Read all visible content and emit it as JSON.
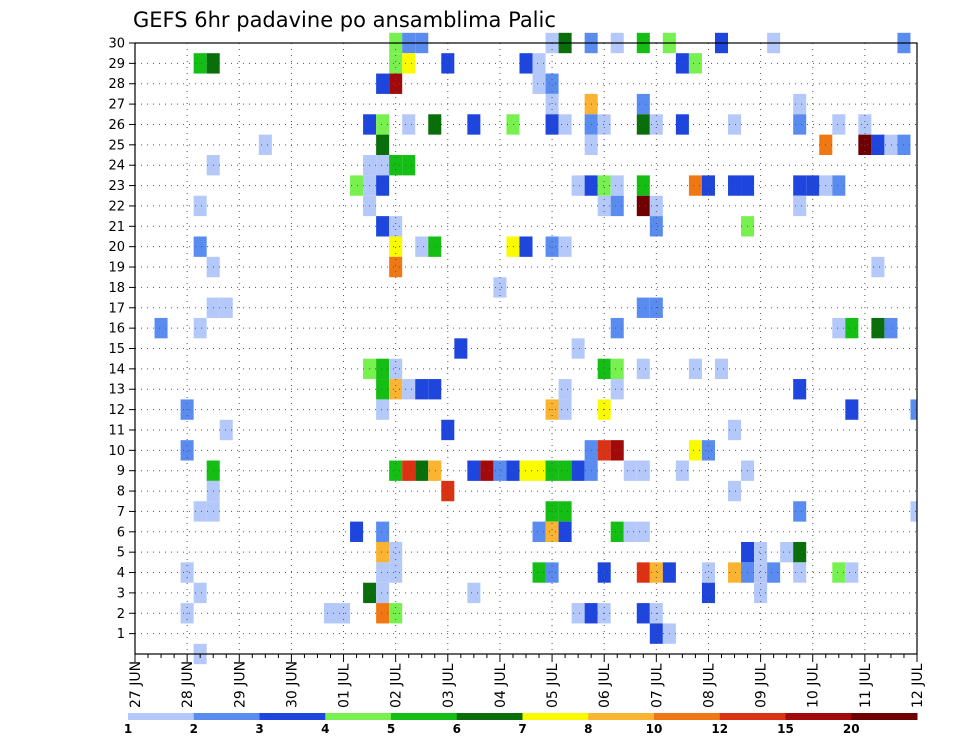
{
  "chart_data": {
    "type": "heatmap",
    "title": "GEFS 6hr padavine po ansamblima Palic",
    "x_tick_labels": [
      "27 JUN",
      "28 JUN",
      "29 JUN",
      "30 JUN",
      "01 JUL",
      "02 JUL",
      "03 JUL",
      "04 JUL",
      "05 JUL",
      "06 JUL",
      "07 JUL",
      "08 JUL",
      "09 JUL",
      "10 JUL",
      "11 JUL",
      "12 JUL"
    ],
    "x_range_days": [
      0,
      15
    ],
    "x_step_days": 0.25,
    "y_tick_labels": [
      "1",
      "2",
      "3",
      "4",
      "5",
      "6",
      "7",
      "8",
      "9",
      "10",
      "11",
      "12",
      "13",
      "14",
      "15",
      "16",
      "17",
      "18",
      "19",
      "20",
      "21",
      "22",
      "23",
      "24",
      "25",
      "26",
      "27",
      "28",
      "29",
      "30"
    ],
    "y_range": [
      0,
      30
    ],
    "grid": "dotted",
    "colorbar": {
      "labels": [
        "1",
        "2",
        "3",
        "4",
        "5",
        "6",
        "7",
        "8",
        "10",
        "12",
        "15",
        "20"
      ],
      "colors": [
        "#b4c8fa",
        "#5a8cf0",
        "#1e46dc",
        "#78f050",
        "#14be14",
        "#0a6e0a",
        "#fafa00",
        "#fab432",
        "#f07814",
        "#dc3214",
        "#a00a0a",
        "#6e0000"
      ]
    },
    "cells": [
      [
        5.0,
        30,
        4
      ],
      [
        5.25,
        30,
        2
      ],
      [
        5.5,
        30,
        2
      ],
      [
        8.0,
        30,
        1
      ],
      [
        8.25,
        30,
        6
      ],
      [
        8.75,
        30,
        2
      ],
      [
        9.25,
        30,
        1
      ],
      [
        9.75,
        30,
        5
      ],
      [
        10.25,
        30,
        4
      ],
      [
        11.25,
        30,
        3
      ],
      [
        12.25,
        30,
        1
      ],
      [
        14.75,
        30,
        2
      ],
      [
        1.25,
        29,
        5
      ],
      [
        1.5,
        29,
        6
      ],
      [
        5.0,
        29,
        4
      ],
      [
        5.25,
        29,
        7
      ],
      [
        6.0,
        29,
        3
      ],
      [
        7.5,
        29,
        3
      ],
      [
        7.75,
        29,
        1
      ],
      [
        10.5,
        29,
        3
      ],
      [
        10.75,
        29,
        4
      ],
      [
        4.75,
        28,
        3
      ],
      [
        5.0,
        28,
        11
      ],
      [
        7.75,
        28,
        1
      ],
      [
        8.0,
        28,
        2
      ],
      [
        8.0,
        27,
        1
      ],
      [
        8.75,
        27,
        8
      ],
      [
        9.75,
        27,
        2
      ],
      [
        12.75,
        27,
        1
      ],
      [
        4.5,
        26,
        3
      ],
      [
        4.75,
        26,
        4
      ],
      [
        5.25,
        26,
        1
      ],
      [
        5.75,
        26,
        6
      ],
      [
        6.5,
        26,
        3
      ],
      [
        7.25,
        26,
        4
      ],
      [
        8.0,
        26,
        3
      ],
      [
        8.25,
        26,
        1
      ],
      [
        8.75,
        26,
        2
      ],
      [
        9.0,
        26,
        1
      ],
      [
        9.75,
        26,
        6
      ],
      [
        10.0,
        26,
        1
      ],
      [
        10.5,
        26,
        3
      ],
      [
        11.5,
        26,
        1
      ],
      [
        12.75,
        26,
        2
      ],
      [
        13.5,
        26,
        1
      ],
      [
        14.0,
        26,
        1
      ],
      [
        2.5,
        25,
        1
      ],
      [
        4.75,
        25,
        6
      ],
      [
        8.75,
        25,
        1
      ],
      [
        13.25,
        25,
        9
      ],
      [
        14.0,
        25,
        12
      ],
      [
        14.25,
        25,
        3
      ],
      [
        14.5,
        25,
        1
      ],
      [
        14.75,
        25,
        2
      ],
      [
        1.5,
        24,
        1
      ],
      [
        4.5,
        24,
        1
      ],
      [
        4.75,
        24,
        1
      ],
      [
        5.0,
        24,
        5
      ],
      [
        5.25,
        24,
        5
      ],
      [
        4.25,
        23,
        4
      ],
      [
        4.5,
        23,
        1
      ],
      [
        4.75,
        23,
        3
      ],
      [
        8.5,
        23,
        1
      ],
      [
        8.75,
        23,
        3
      ],
      [
        9.0,
        23,
        4
      ],
      [
        9.25,
        23,
        1
      ],
      [
        9.75,
        23,
        5
      ],
      [
        10.75,
        23,
        9
      ],
      [
        11.0,
        23,
        3
      ],
      [
        11.5,
        23,
        3
      ],
      [
        11.75,
        23,
        3
      ],
      [
        12.75,
        23,
        3
      ],
      [
        13.0,
        23,
        3
      ],
      [
        13.25,
        23,
        1
      ],
      [
        13.5,
        23,
        2
      ],
      [
        1.25,
        22,
        1
      ],
      [
        4.5,
        22,
        1
      ],
      [
        9.0,
        22,
        1
      ],
      [
        9.25,
        22,
        2
      ],
      [
        9.75,
        22,
        12
      ],
      [
        10.0,
        22,
        1
      ],
      [
        12.75,
        22,
        1
      ],
      [
        4.75,
        21,
        3
      ],
      [
        5.0,
        21,
        1
      ],
      [
        10.0,
        21,
        2
      ],
      [
        11.75,
        21,
        4
      ],
      [
        1.25,
        20,
        2
      ],
      [
        5.0,
        20,
        7
      ],
      [
        5.5,
        20,
        1
      ],
      [
        5.75,
        20,
        5
      ],
      [
        7.25,
        20,
        7
      ],
      [
        7.5,
        20,
        3
      ],
      [
        8.0,
        20,
        2
      ],
      [
        8.25,
        20,
        1
      ],
      [
        5.0,
        19,
        9
      ],
      [
        1.5,
        19,
        1
      ],
      [
        14.25,
        19,
        1
      ],
      [
        7.0,
        18,
        1
      ],
      [
        1.5,
        17,
        1
      ],
      [
        1.75,
        17,
        1
      ],
      [
        9.75,
        17,
        2
      ],
      [
        10.0,
        17,
        2
      ],
      [
        0.5,
        16,
        2
      ],
      [
        1.25,
        16,
        1
      ],
      [
        9.25,
        16,
        2
      ],
      [
        13.5,
        16,
        1
      ],
      [
        13.75,
        16,
        5
      ],
      [
        14.25,
        16,
        6
      ],
      [
        14.5,
        16,
        2
      ],
      [
        6.25,
        15,
        3
      ],
      [
        8.5,
        15,
        1
      ],
      [
        4.5,
        14,
        4
      ],
      [
        4.75,
        14,
        5
      ],
      [
        5.0,
        14,
        1
      ],
      [
        9.0,
        14,
        5
      ],
      [
        9.25,
        14,
        4
      ],
      [
        9.75,
        14,
        1
      ],
      [
        10.75,
        14,
        1
      ],
      [
        11.25,
        14,
        1
      ],
      [
        4.75,
        13,
        5
      ],
      [
        5.0,
        13,
        8
      ],
      [
        5.25,
        13,
        1
      ],
      [
        5.5,
        13,
        3
      ],
      [
        5.75,
        13,
        3
      ],
      [
        8.25,
        13,
        1
      ],
      [
        9.25,
        13,
        1
      ],
      [
        12.75,
        13,
        3
      ],
      [
        1.0,
        12,
        2
      ],
      [
        4.75,
        12,
        1
      ],
      [
        8.0,
        12,
        8
      ],
      [
        8.25,
        12,
        1
      ],
      [
        9.0,
        12,
        7
      ],
      [
        13.75,
        12,
        3
      ],
      [
        15.0,
        12,
        2
      ],
      [
        1.75,
        11,
        1
      ],
      [
        6.0,
        11,
        3
      ],
      [
        11.5,
        11,
        1
      ],
      [
        1.0,
        10,
        2
      ],
      [
        8.75,
        10,
        2
      ],
      [
        9.0,
        10,
        10
      ],
      [
        9.25,
        10,
        11
      ],
      [
        10.75,
        10,
        7
      ],
      [
        11.0,
        10,
        2
      ],
      [
        1.5,
        9,
        5
      ],
      [
        5.0,
        9,
        5
      ],
      [
        5.25,
        9,
        10
      ],
      [
        5.5,
        9,
        6
      ],
      [
        5.75,
        9,
        8
      ],
      [
        6.5,
        9,
        3
      ],
      [
        6.75,
        9,
        11
      ],
      [
        7.0,
        9,
        2
      ],
      [
        7.25,
        9,
        3
      ],
      [
        7.5,
        9,
        7
      ],
      [
        7.75,
        9,
        7
      ],
      [
        8.0,
        9,
        5
      ],
      [
        8.25,
        9,
        5
      ],
      [
        8.5,
        9,
        3
      ],
      [
        8.75,
        9,
        2
      ],
      [
        9.5,
        9,
        1
      ],
      [
        9.75,
        9,
        1
      ],
      [
        10.5,
        9,
        1
      ],
      [
        11.75,
        9,
        1
      ],
      [
        1.5,
        8,
        1
      ],
      [
        6.0,
        8,
        10
      ],
      [
        11.5,
        8,
        1
      ],
      [
        1.25,
        7,
        1
      ],
      [
        1.5,
        7,
        1
      ],
      [
        8.0,
        7,
        5
      ],
      [
        8.25,
        7,
        5
      ],
      [
        12.75,
        7,
        2
      ],
      [
        15.0,
        7,
        1
      ],
      [
        4.25,
        6,
        3
      ],
      [
        4.75,
        6,
        2
      ],
      [
        7.75,
        6,
        2
      ],
      [
        8.0,
        6,
        8
      ],
      [
        8.25,
        6,
        3
      ],
      [
        9.25,
        6,
        5
      ],
      [
        9.5,
        6,
        1
      ],
      [
        9.75,
        6,
        1
      ],
      [
        4.75,
        5,
        8
      ],
      [
        5.0,
        5,
        1
      ],
      [
        11.75,
        5,
        3
      ],
      [
        12.0,
        5,
        1
      ],
      [
        12.5,
        5,
        1
      ],
      [
        12.75,
        5,
        6
      ],
      [
        1.0,
        4,
        1
      ],
      [
        4.75,
        4,
        1
      ],
      [
        5.0,
        4,
        1
      ],
      [
        7.75,
        4,
        5
      ],
      [
        8.0,
        4,
        2
      ],
      [
        9.0,
        4,
        3
      ],
      [
        9.75,
        4,
        10
      ],
      [
        10.0,
        4,
        8
      ],
      [
        10.25,
        4,
        3
      ],
      [
        11.0,
        4,
        1
      ],
      [
        11.5,
        4,
        8
      ],
      [
        11.75,
        4,
        2
      ],
      [
        12.0,
        4,
        1
      ],
      [
        12.25,
        4,
        2
      ],
      [
        12.75,
        4,
        1
      ],
      [
        13.5,
        4,
        4
      ],
      [
        13.75,
        4,
        1
      ],
      [
        1.25,
        3,
        1
      ],
      [
        4.5,
        3,
        6
      ],
      [
        4.75,
        3,
        1
      ],
      [
        6.5,
        3,
        1
      ],
      [
        11.0,
        3,
        3
      ],
      [
        12.0,
        3,
        1
      ],
      [
        1.0,
        2,
        1
      ],
      [
        3.75,
        2,
        1
      ],
      [
        4.0,
        2,
        1
      ],
      [
        4.75,
        2,
        9
      ],
      [
        5.0,
        2,
        4
      ],
      [
        8.5,
        2,
        1
      ],
      [
        8.75,
        2,
        3
      ],
      [
        9.0,
        2,
        1
      ],
      [
        9.75,
        2,
        3
      ],
      [
        10.0,
        2,
        1
      ],
      [
        10.0,
        1,
        3
      ],
      [
        10.25,
        1,
        1
      ],
      [
        1.25,
        0,
        1
      ]
    ]
  }
}
